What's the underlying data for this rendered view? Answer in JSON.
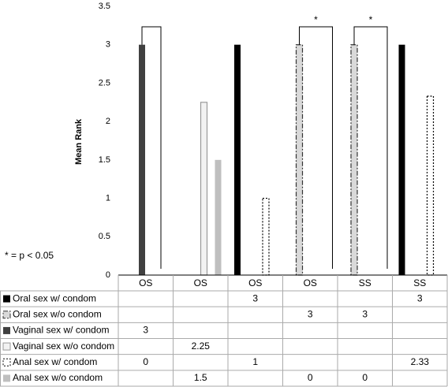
{
  "chart_data": {
    "type": "bar",
    "y_label": "Mean Rank",
    "note": "* = p < 0.05",
    "categories": [
      "OS",
      "OS",
      "OS",
      "OS",
      "SS",
      "SS"
    ],
    "ylim": [
      0,
      3.5
    ],
    "yticks": [
      0,
      0.5,
      1,
      1.5,
      2,
      2.5,
      3,
      3.5
    ],
    "significance": [
      "*",
      "*"
    ],
    "series": [
      {
        "name": "Oral sex w/ condom",
        "color": "#000000",
        "values": [
          null,
          null,
          3,
          null,
          null,
          3
        ]
      },
      {
        "name": "Oral sex w/o condom",
        "color": "#d9d9d9",
        "values": [
          null,
          null,
          null,
          3,
          3,
          null
        ]
      },
      {
        "name": "Vaginal sex w/ condom",
        "color": "#404040",
        "values": [
          3,
          null,
          null,
          null,
          null,
          null
        ]
      },
      {
        "name": "Vaginal sex w/o condom",
        "color": "#f2f2f2",
        "values": [
          null,
          2.25,
          null,
          null,
          null,
          null
        ]
      },
      {
        "name": "Anal sex w/ condom",
        "color": "#ffffff",
        "values": [
          0,
          null,
          1,
          null,
          null,
          2.33
        ]
      },
      {
        "name": "Anal sex w/o condom",
        "color": "#bfbfbf",
        "values": [
          null,
          1.5,
          null,
          0,
          0,
          null
        ]
      }
    ]
  }
}
